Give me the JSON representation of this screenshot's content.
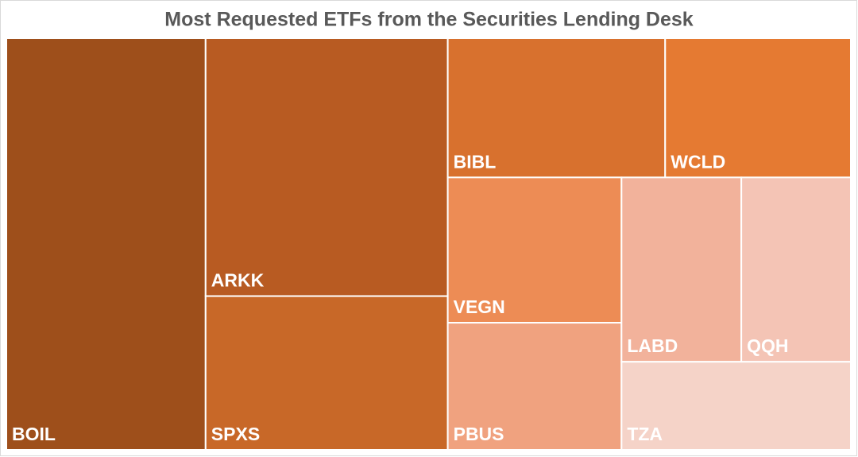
{
  "chart_data": {
    "type": "treemap",
    "title": "Most Requested ETFs from the Securities Lending Desk",
    "categories": [
      "BOIL",
      "ARKK",
      "SPXS",
      "BIBL",
      "WCLD",
      "VEGN",
      "PBUS",
      "LABD",
      "QQH",
      "TZA"
    ],
    "values": [
      130,
      99,
      59,
      48,
      41,
      40,
      35,
      35,
      32,
      32
    ],
    "colors": [
      "#9e4f1b",
      "#b85b22",
      "#c86828",
      "#d8712e",
      "#e57a32",
      "#ed8c55",
      "#f0a27f",
      "#f2b29b",
      "#f4c4b5",
      "#f5d3c8"
    ]
  }
}
